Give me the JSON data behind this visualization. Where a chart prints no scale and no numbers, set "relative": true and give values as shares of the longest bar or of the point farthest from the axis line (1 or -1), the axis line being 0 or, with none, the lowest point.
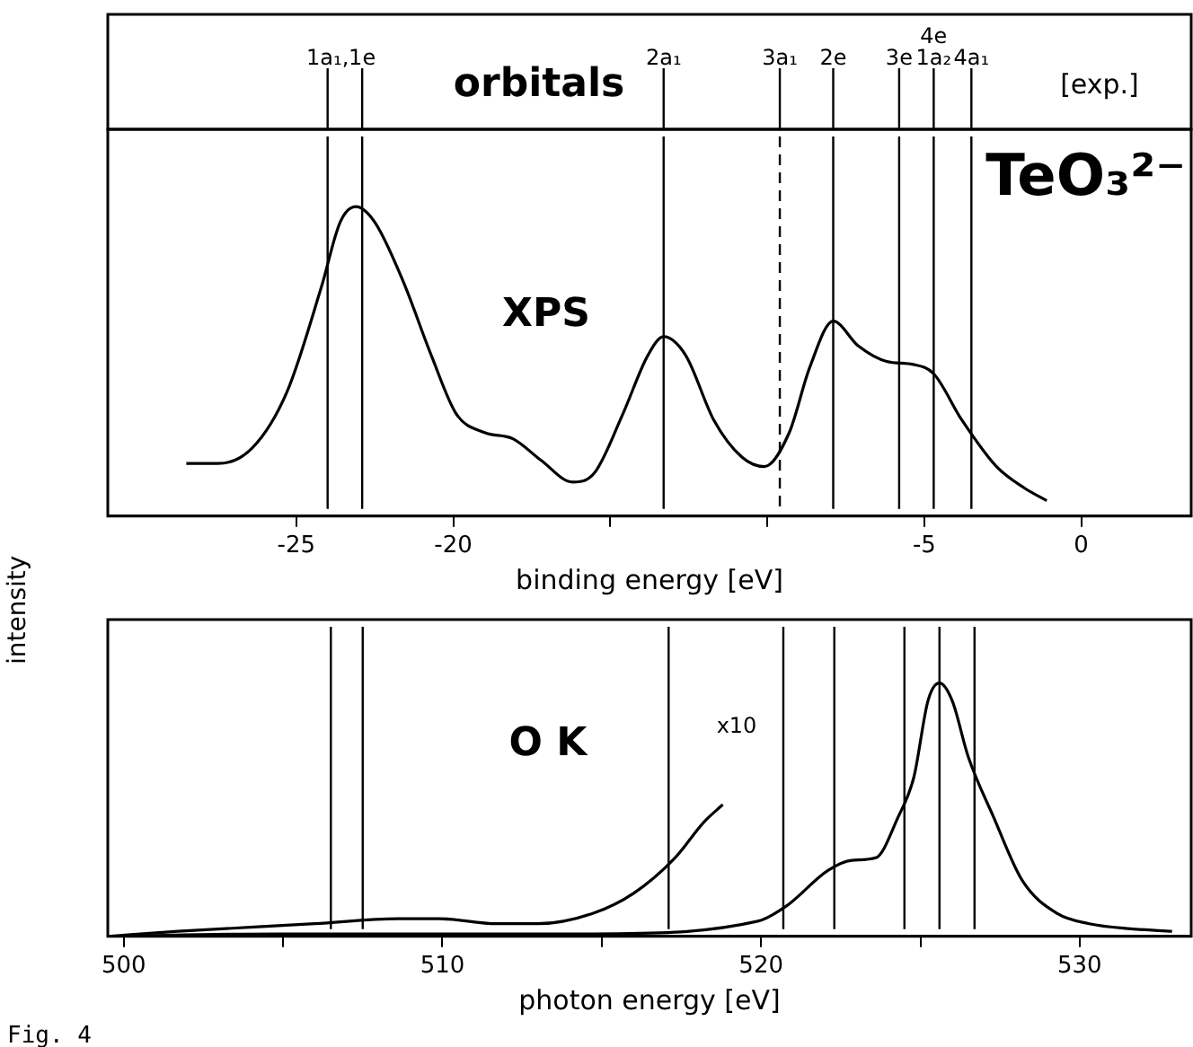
{
  "chart_data": [
    {
      "type": "line",
      "xlabel": "binding energy [eV]",
      "ylabel": "intensity",
      "relative": true,
      "xlim": [
        -31,
        3.5
      ],
      "xticks": [
        -25,
        -20,
        {
          "value": -15,
          "label": null
        },
        {
          "value": -10,
          "label": null
        },
        -5,
        0
      ],
      "grid": false,
      "legend": false,
      "marker": "none",
      "line_style": "solid",
      "annotations": [
        "orbitals",
        "[exp.]",
        "TeO₃²⁻",
        "XPS"
      ],
      "ref_lines": [
        {
          "axis": "x",
          "value": -24.0,
          "label": "1a₁,"
        },
        {
          "axis": "x",
          "value": -22.9,
          "label": "1e"
        },
        {
          "axis": "x",
          "value": -13.3,
          "label": "2a₁"
        },
        {
          "axis": "x",
          "value": -9.6,
          "label": "3a₁",
          "line_style": "dashed"
        },
        {
          "axis": "x",
          "value": -7.9,
          "label": "2e"
        },
        {
          "axis": "x",
          "value": -5.8,
          "label": "3e"
        },
        {
          "axis": "x",
          "value": -4.7,
          "label": "4e 1a₂"
        },
        {
          "axis": "x",
          "value": -3.5,
          "label": "4a₁"
        }
      ],
      "series": [
        {
          "color": "#000000",
          "x": [
            -28.5,
            -27.5,
            -26.4,
            -25.3,
            -24.2,
            -23.6,
            -23.1,
            -22.5,
            -21.6,
            -20.7,
            -19.9,
            -19.0,
            -18.1,
            -17.2,
            -16.2,
            -15.5,
            -14.6,
            -13.8,
            -13.3,
            -12.6,
            -11.7,
            -10.8,
            -10.1,
            -9.3,
            -8.65,
            -7.9,
            -7.1,
            -6.2,
            -5.35,
            -4.7,
            -3.8,
            -2.7,
            -1.8,
            -1.1
          ],
          "values": [
            0.17,
            0.17,
            0.22,
            0.4,
            0.74,
            0.95,
            1.0,
            0.95,
            0.76,
            0.52,
            0.33,
            0.27,
            0.25,
            0.18,
            0.11,
            0.14,
            0.33,
            0.52,
            0.58,
            0.52,
            0.31,
            0.19,
            0.16,
            0.27,
            0.48,
            0.63,
            0.55,
            0.5,
            0.49,
            0.46,
            0.31,
            0.16,
            0.09,
            0.05
          ]
        }
      ]
    },
    {
      "type": "line",
      "xlabel": "photon energy [eV]",
      "relative": true,
      "xlim": [
        499.5,
        533.5
      ],
      "xticks": [
        500,
        {
          "value": 505,
          "label": null
        },
        510,
        {
          "value": 515,
          "label": null
        },
        520,
        {
          "value": 525,
          "label": null
        },
        530
      ],
      "grid": false,
      "legend": false,
      "marker": "none",
      "line_style": "solid",
      "annotations": [
        "O K",
        "x10",
        "Fig. 4"
      ],
      "ref_lines": [
        {
          "axis": "x",
          "value": 506.5
        },
        {
          "axis": "x",
          "value": 507.5
        },
        {
          "axis": "x",
          "value": 517.1
        },
        {
          "axis": "x",
          "value": 520.7
        },
        {
          "axis": "x",
          "value": 522.3
        },
        {
          "axis": "x",
          "value": 524.5
        },
        {
          "axis": "x",
          "value": 525.6
        },
        {
          "axis": "x",
          "value": 526.7
        }
      ],
      "series": [
        {
          "color": "#000000",
          "x": [
            499.5,
            504.9,
            514.7,
            519.9,
            520.8,
            522.1,
            522.85,
            523.6,
            524.3,
            524.8,
            525.24,
            525.6,
            526.0,
            526.5,
            527.3,
            528.2,
            529.3,
            530.3,
            531.6,
            532.9
          ],
          "values": [
            0,
            0.01,
            0.01,
            0.06,
            0.12,
            0.26,
            0.3,
            0.31,
            0.47,
            0.63,
            0.93,
            1.0,
            0.93,
            0.71,
            0.47,
            0.22,
            0.09,
            0.05,
            0.03,
            0.02
          ]
        },
        {
          "color": "#000000",
          "x": [
            499.5,
            501.7,
            506.0,
            508.6,
            509.9,
            511.7,
            513.0,
            514.7,
            516.0,
            517.3,
            518.2,
            518.8
          ],
          "values": [
            0,
            0.02,
            0.05,
            0.07,
            0.07,
            0.05,
            0.05,
            0.09,
            0.17,
            0.31,
            0.45,
            0.52
          ]
        }
      ]
    }
  ]
}
